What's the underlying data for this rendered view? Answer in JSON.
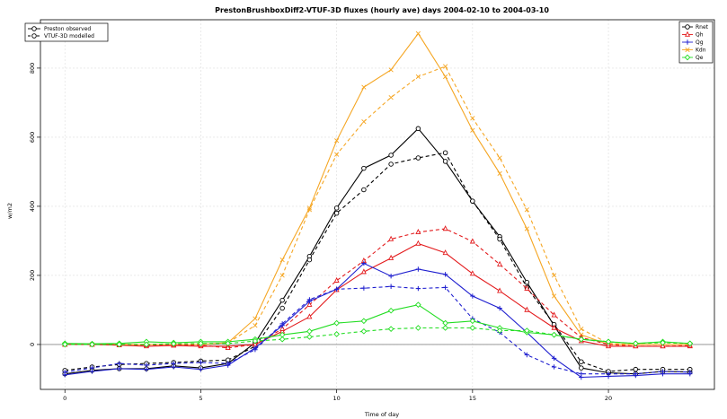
{
  "chart_data": {
    "type": "line",
    "title": "PrestonBrushboxDiff2-VTUF-3D fluxes (hourly ave) days 2004-02-10 to 2004-03-10",
    "xlabel": "Time of day",
    "ylabel": "w/m2",
    "xlim": [
      -0.9,
      23.9
    ],
    "ylim": [
      -130,
      940
    ],
    "xticks": [
      0,
      5,
      10,
      15,
      20
    ],
    "yticks": [
      0,
      200,
      400,
      600,
      800
    ],
    "grid": true,
    "x": [
      0,
      1,
      2,
      3,
      4,
      5,
      6,
      7,
      8,
      9,
      10,
      11,
      12,
      13,
      14,
      15,
      16,
      17,
      18,
      19,
      20,
      21,
      22,
      23
    ],
    "legend_source": {
      "placement": "top-left",
      "entries": [
        {
          "label": "Preston observed",
          "style": "solid",
          "marker": "circle"
        },
        {
          "label": "VTUF-3D modelled",
          "style": "dashed",
          "marker": "circle"
        }
      ]
    },
    "legend_flux": {
      "placement": "top-right",
      "entries": [
        {
          "label": "Rnet",
          "color": "#000000",
          "marker": "circle"
        },
        {
          "label": "Qh",
          "color": "#e31a1c",
          "marker": "triangle"
        },
        {
          "label": "Qg",
          "color": "#1f1fcf",
          "marker": "plus"
        },
        {
          "label": "Kdn",
          "color": "#f5a623",
          "marker": "x"
        },
        {
          "label": "Qe",
          "color": "#22dd22",
          "marker": "diamond"
        }
      ]
    },
    "series": [
      {
        "flux": "Kdn",
        "source": "observed",
        "color": "#f5a623",
        "marker": "x",
        "dash": false,
        "values": [
          0,
          0,
          0,
          0,
          0,
          0,
          5,
          75,
          245,
          395,
          590,
          745,
          795,
          900,
          775,
          620,
          495,
          335,
          140,
          28,
          0,
          0,
          0,
          0
        ]
      },
      {
        "flux": "Kdn",
        "source": "modelled",
        "color": "#f5a623",
        "marker": "x",
        "dash": true,
        "values": [
          0,
          0,
          0,
          0,
          0,
          0,
          5,
          55,
          200,
          390,
          550,
          645,
          715,
          775,
          805,
          655,
          540,
          390,
          200,
          45,
          3,
          0,
          0,
          0
        ]
      },
      {
        "flux": "Rnet",
        "source": "observed",
        "color": "#000000",
        "marker": "circle",
        "dash": false,
        "values": [
          -85,
          -75,
          -70,
          -70,
          -62,
          -68,
          -55,
          5,
          128,
          255,
          395,
          510,
          548,
          625,
          530,
          415,
          312,
          180,
          55,
          -68,
          -82,
          -85,
          -78,
          -80
        ]
      },
      {
        "flux": "Rnet",
        "source": "modelled",
        "color": "#000000",
        "marker": "circle",
        "dash": true,
        "values": [
          -75,
          -65,
          -58,
          -55,
          -52,
          -48,
          -45,
          -5,
          105,
          245,
          380,
          448,
          522,
          540,
          555,
          415,
          305,
          165,
          58,
          -50,
          -78,
          -72,
          -72,
          -72
        ]
      },
      {
        "flux": "Qh",
        "source": "observed",
        "color": "#e31a1c",
        "marker": "triangle",
        "dash": false,
        "values": [
          0,
          0,
          -2,
          -5,
          -3,
          -5,
          -5,
          0,
          38,
          80,
          158,
          210,
          250,
          292,
          265,
          205,
          155,
          100,
          48,
          10,
          -5,
          -5,
          -5,
          -5
        ]
      },
      {
        "flux": "Qh",
        "source": "modelled",
        "color": "#e31a1c",
        "marker": "triangle",
        "dash": true,
        "values": [
          0,
          0,
          0,
          -2,
          0,
          -2,
          -10,
          0,
          45,
          115,
          185,
          242,
          305,
          325,
          335,
          298,
          232,
          162,
          85,
          20,
          0,
          -5,
          -5,
          -3
        ]
      },
      {
        "flux": "Qg",
        "source": "observed",
        "color": "#1f1fcf",
        "marker": "plus",
        "dash": false,
        "values": [
          -88,
          -78,
          -70,
          -72,
          -65,
          -72,
          -60,
          -10,
          55,
          125,
          160,
          235,
          198,
          218,
          203,
          140,
          105,
          35,
          -40,
          -95,
          -92,
          -90,
          -85,
          -85
        ]
      },
      {
        "flux": "Qg",
        "source": "modelled",
        "color": "#1f1fcf",
        "marker": "plus",
        "dash": true,
        "values": [
          -80,
          -68,
          -55,
          -60,
          -55,
          -52,
          -55,
          -15,
          60,
          130,
          160,
          163,
          168,
          162,
          165,
          75,
          35,
          -30,
          -65,
          -85,
          -85,
          -85,
          -78,
          -80
        ]
      },
      {
        "flux": "Qe",
        "source": "observed",
        "color": "#22dd22",
        "marker": "diamond",
        "dash": false,
        "values": [
          3,
          2,
          3,
          8,
          5,
          8,
          8,
          15,
          28,
          38,
          62,
          68,
          98,
          115,
          62,
          68,
          48,
          35,
          28,
          15,
          8,
          3,
          8,
          3
        ]
      },
      {
        "flux": "Qe",
        "source": "modelled",
        "color": "#22dd22",
        "marker": "diamond",
        "dash": true,
        "values": [
          0,
          0,
          0,
          0,
          2,
          3,
          3,
          10,
          15,
          22,
          30,
          38,
          45,
          48,
          48,
          48,
          40,
          40,
          28,
          15,
          8,
          3,
          5,
          3
        ]
      }
    ]
  }
}
